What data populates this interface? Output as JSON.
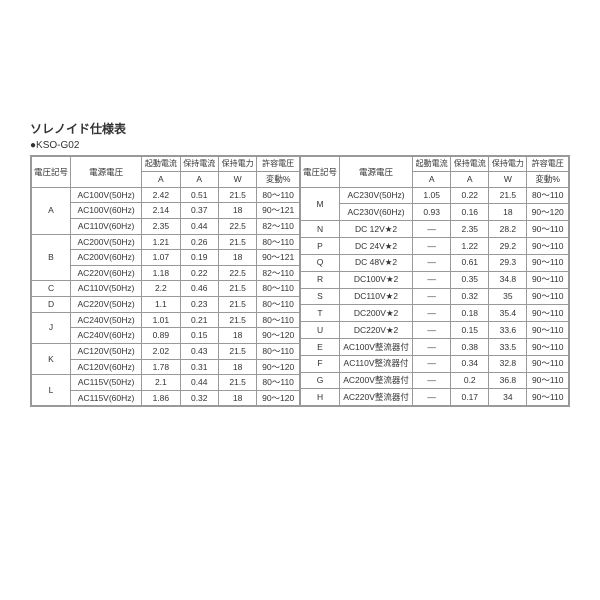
{
  "title": "ソレノイド仕様表",
  "subtitle": "●KSO-G02",
  "headers": {
    "code": "電圧記号",
    "voltage": "電源電圧",
    "start_current": "起動電流",
    "hold_current": "保持電流",
    "hold_power": "保持電力",
    "tolerance": "許容電圧",
    "unit_a": "A",
    "unit_w": "W",
    "tolerance_pct": "変動%"
  },
  "left_rows": [
    {
      "code": "A",
      "span": 3,
      "cells": [
        [
          "AC100V(50Hz)",
          "2.42",
          "0.51",
          "21.5",
          "80～110"
        ],
        [
          "AC100V(60Hz)",
          "2.14",
          "0.37",
          "18",
          "90～121"
        ],
        [
          "AC110V(60Hz)",
          "2.35",
          "0.44",
          "22.5",
          "82～110"
        ]
      ]
    },
    {
      "code": "B",
      "span": 3,
      "cells": [
        [
          "AC200V(50Hz)",
          "1.21",
          "0.26",
          "21.5",
          "80～110"
        ],
        [
          "AC200V(60Hz)",
          "1.07",
          "0.19",
          "18",
          "90～121"
        ],
        [
          "AC220V(60Hz)",
          "1.18",
          "0.22",
          "22.5",
          "82～110"
        ]
      ]
    },
    {
      "code": "C",
      "span": 1,
      "cells": [
        [
          "AC110V(50Hz)",
          "2.2",
          "0.46",
          "21.5",
          "80～110"
        ]
      ]
    },
    {
      "code": "D",
      "span": 1,
      "cells": [
        [
          "AC220V(50Hz)",
          "1.1",
          "0.23",
          "21.5",
          "80～110"
        ]
      ]
    },
    {
      "code": "J",
      "span": 2,
      "cells": [
        [
          "AC240V(50Hz)",
          "1.01",
          "0.21",
          "21.5",
          "80～110"
        ],
        [
          "AC240V(60Hz)",
          "0.89",
          "0.15",
          "18",
          "90～120"
        ]
      ]
    },
    {
      "code": "K",
      "span": 2,
      "cells": [
        [
          "AC120V(50Hz)",
          "2.02",
          "0.43",
          "21.5",
          "80～110"
        ],
        [
          "AC120V(60Hz)",
          "1.78",
          "0.31",
          "18",
          "90～120"
        ]
      ]
    },
    {
      "code": "L",
      "span": 2,
      "cells": [
        [
          "AC115V(50Hz)",
          "2.1",
          "0.44",
          "21.5",
          "80～110"
        ],
        [
          "AC115V(60Hz)",
          "1.86",
          "0.32",
          "18",
          "90～120"
        ]
      ]
    }
  ],
  "right_rows": [
    {
      "code": "M",
      "span": 2,
      "cells": [
        [
          "AC230V(50Hz)",
          "1.05",
          "0.22",
          "21.5",
          "80～110"
        ],
        [
          "AC230V(60Hz)",
          "0.93",
          "0.16",
          "18",
          "90～120"
        ]
      ]
    },
    {
      "code": "N",
      "span": 1,
      "cells": [
        [
          "DC 12V★2",
          "—",
          "2.35",
          "28.2",
          "90～110"
        ]
      ]
    },
    {
      "code": "P",
      "span": 1,
      "cells": [
        [
          "DC 24V★2",
          "—",
          "1.22",
          "29.2",
          "90～110"
        ]
      ]
    },
    {
      "code": "Q",
      "span": 1,
      "cells": [
        [
          "DC 48V★2",
          "—",
          "0.61",
          "29.3",
          "90～110"
        ]
      ]
    },
    {
      "code": "R",
      "span": 1,
      "cells": [
        [
          "DC100V★2",
          "—",
          "0.35",
          "34.8",
          "90～110"
        ]
      ]
    },
    {
      "code": "S",
      "span": 1,
      "cells": [
        [
          "DC110V★2",
          "—",
          "0.32",
          "35",
          "90～110"
        ]
      ]
    },
    {
      "code": "T",
      "span": 1,
      "cells": [
        [
          "DC200V★2",
          "—",
          "0.18",
          "35.4",
          "90～110"
        ]
      ]
    },
    {
      "code": "U",
      "span": 1,
      "cells": [
        [
          "DC220V★2",
          "—",
          "0.15",
          "33.6",
          "90～110"
        ]
      ]
    },
    {
      "code": "E",
      "span": 1,
      "cells": [
        [
          "AC100V整流器付",
          "—",
          "0.38",
          "33.5",
          "90～110"
        ]
      ]
    },
    {
      "code": "F",
      "span": 1,
      "cells": [
        [
          "AC110V整流器付",
          "—",
          "0.34",
          "32.8",
          "90～110"
        ]
      ]
    },
    {
      "code": "G",
      "span": 1,
      "cells": [
        [
          "AC200V整流器付",
          "—",
          "0.2",
          "36.8",
          "90～110"
        ]
      ]
    },
    {
      "code": "H",
      "span": 1,
      "cells": [
        [
          "AC220V整流器付",
          "—",
          "0.17",
          "34",
          "90～110"
        ]
      ]
    }
  ],
  "col_widths": {
    "code": "34px",
    "voltage": "70px",
    "num": "34px",
    "tol": "40px"
  }
}
